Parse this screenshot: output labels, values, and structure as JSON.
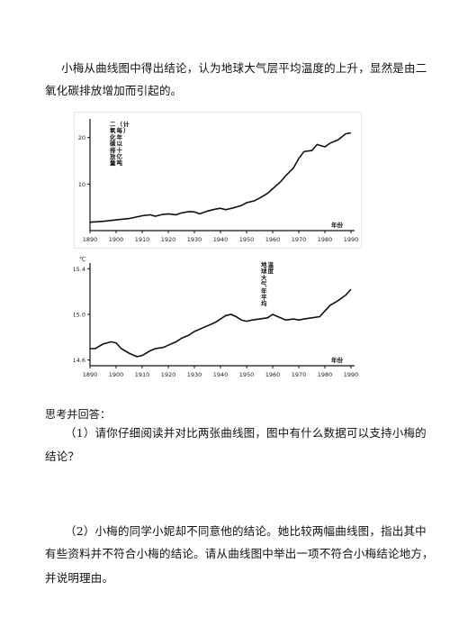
{
  "intro": {
    "line1": "小梅从曲线图中得出结论，认为地球大气层平均温度的上升，显然是由二",
    "line2": "氧化碳排放增加而引起的。"
  },
  "chart_data": [
    {
      "type": "line",
      "ylabel": "二氧化碳排放量（每年以十亿吨计）",
      "xlabel": "年份",
      "x_ticks": [
        "1890",
        "1900",
        "1910",
        "1920",
        "1930",
        "1940",
        "1950",
        "1960",
        "1970",
        "1980",
        "1990"
      ],
      "y_ticks": [
        "10",
        "20"
      ],
      "xlim": [
        1890,
        1990
      ],
      "ylim": [
        0,
        24
      ],
      "grid": false,
      "x": [
        1890,
        1895,
        1900,
        1905,
        1910,
        1913,
        1915,
        1918,
        1920,
        1923,
        1925,
        1928,
        1930,
        1932,
        1935,
        1938,
        1940,
        1942,
        1945,
        1948,
        1950,
        1953,
        1955,
        1958,
        1960,
        1963,
        1965,
        1968,
        1970,
        1972,
        1975,
        1977,
        1980,
        1982,
        1985,
        1988,
        1990
      ],
      "values": [
        1.8,
        2.0,
        2.3,
        2.6,
        3.2,
        3.4,
        3.1,
        3.5,
        3.6,
        3.4,
        3.8,
        4.1,
        4.0,
        3.6,
        4.2,
        4.6,
        4.8,
        4.5,
        4.9,
        5.4,
        6.0,
        6.4,
        7.0,
        8.0,
        9.0,
        10.5,
        11.8,
        13.5,
        15.5,
        17.0,
        17.2,
        18.5,
        18.0,
        18.8,
        19.5,
        20.8,
        21.0
      ]
    },
    {
      "type": "line",
      "ylabel": "地球大气年平均温度",
      "y_unit": "℃",
      "xlabel": "年份",
      "x_ticks": [
        "1890",
        "1900",
        "1910",
        "1920",
        "1930",
        "1940",
        "1950",
        "1960",
        "1970",
        "1980",
        "1990"
      ],
      "y_ticks": [
        "15.4",
        "15.0",
        "14.6"
      ],
      "xlim": [
        1890,
        1990
      ],
      "ylim": [
        14.55,
        15.45
      ],
      "grid": false,
      "x": [
        1890,
        1892,
        1895,
        1898,
        1900,
        1902,
        1905,
        1908,
        1910,
        1913,
        1915,
        1918,
        1920,
        1923,
        1925,
        1928,
        1930,
        1933,
        1935,
        1938,
        1940,
        1942,
        1944,
        1946,
        1948,
        1950,
        1952,
        1955,
        1958,
        1960,
        1962,
        1965,
        1968,
        1970,
        1972,
        1975,
        1978,
        1980,
        1982,
        1985,
        1988,
        1990
      ],
      "values": [
        14.7,
        14.7,
        14.74,
        14.76,
        14.75,
        14.7,
        14.66,
        14.63,
        14.64,
        14.68,
        14.7,
        14.71,
        14.73,
        14.76,
        14.79,
        14.82,
        14.85,
        14.88,
        14.9,
        14.93,
        14.96,
        14.99,
        15.0,
        14.98,
        14.95,
        14.94,
        14.95,
        14.96,
        14.97,
        15.0,
        14.98,
        14.95,
        14.96,
        14.95,
        14.96,
        14.97,
        14.98,
        15.03,
        15.08,
        15.12,
        15.17,
        15.22
      ]
    }
  ],
  "think": "思考并回答：",
  "q1": {
    "line1": "（1）请你仔细阅读并对比两张曲线图，图中有什么数据可以支持小梅的",
    "line2": "结论？"
  },
  "q2": {
    "line1": "（2）小梅的同学小妮却不同意他的结论。她比较两幅曲线图，指出其中",
    "line2": "有些资料并不符合小梅的结论。请从曲线图中举出一项不符合小梅结论地方，",
    "line3": "并说明理由。"
  }
}
